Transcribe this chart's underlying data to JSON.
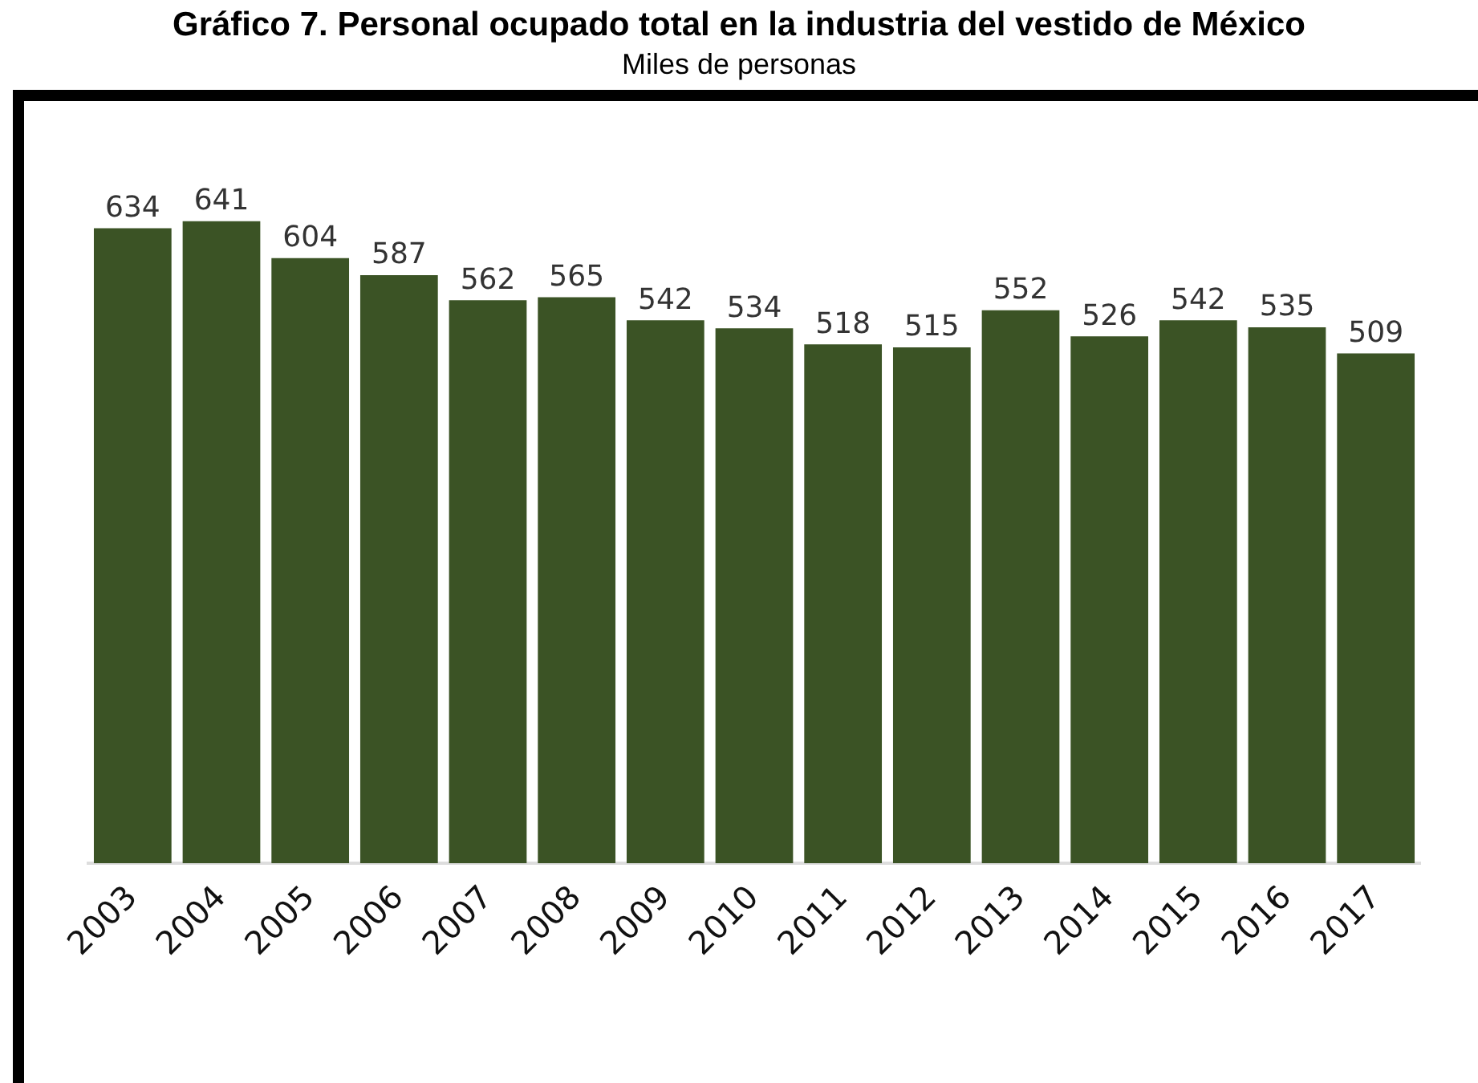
{
  "chart_data": {
    "type": "bar",
    "title": "Gráfico 7. Personal ocupado total en la industria del vestido de México",
    "subtitle": "Miles de personas",
    "categories": [
      "2003",
      "2004",
      "2005",
      "2006",
      "2007",
      "2008",
      "2009",
      "2010",
      "2011",
      "2012",
      "2013",
      "2014",
      "2015",
      "2016",
      "2017"
    ],
    "values": [
      634,
      641,
      604,
      587,
      562,
      565,
      542,
      534,
      518,
      515,
      552,
      526,
      542,
      535,
      509
    ],
    "color": "#3b5325",
    "data_labels": true,
    "grid": false,
    "legend": false,
    "tick_labels": "x"
  }
}
